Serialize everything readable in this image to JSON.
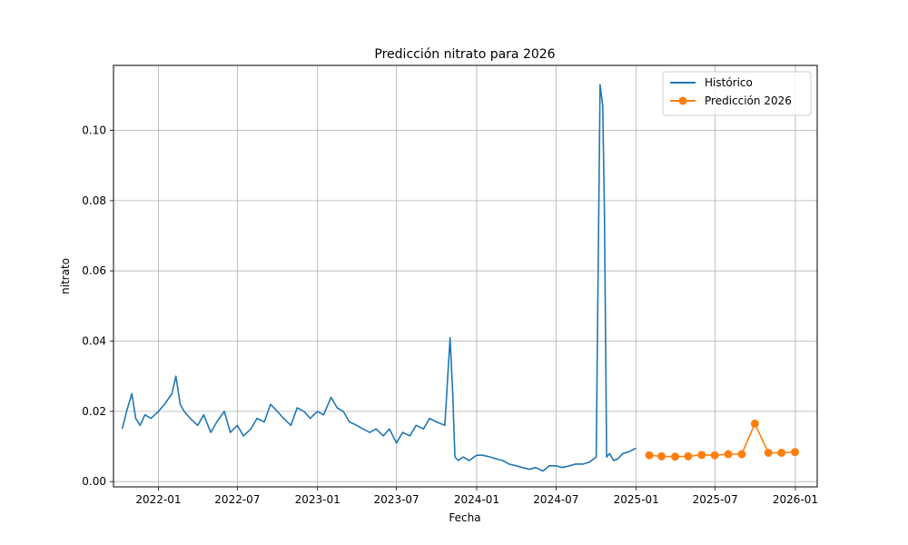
{
  "chart_data": {
    "type": "line",
    "title": "Predicción nitrato para 2026",
    "xlabel": "Fecha",
    "ylabel": "nitrato",
    "x_ticks": [
      "2022-01",
      "2022-07",
      "2023-01",
      "2023-07",
      "2024-01",
      "2024-07",
      "2025-01",
      "2025-07",
      "2026-01"
    ],
    "y_ticks": [
      "0.00",
      "0.02",
      "0.04",
      "0.06",
      "0.08",
      "0.10"
    ],
    "xlim": [
      "2021-09-20",
      "2026-02-20"
    ],
    "ylim": [
      -0.0015,
      0.1185
    ],
    "grid": true,
    "legend_position": "top-right",
    "colors": {
      "historico": "#1f77b4",
      "prediccion": "#ff7f0e"
    },
    "series": [
      {
        "name": "Histórico",
        "marker": "none",
        "x": [
          "2021-10-10",
          "2021-10-20",
          "2021-11-01",
          "2021-11-10",
          "2021-11-20",
          "2021-12-01",
          "2021-12-15",
          "2022-01-01",
          "2022-01-15",
          "2022-02-01",
          "2022-02-10",
          "2022-02-20",
          "2022-03-01",
          "2022-03-15",
          "2022-04-01",
          "2022-04-15",
          "2022-05-01",
          "2022-05-15",
          "2022-06-01",
          "2022-06-15",
          "2022-07-01",
          "2022-07-15",
          "2022-08-01",
          "2022-08-15",
          "2022-09-01",
          "2022-09-15",
          "2022-10-01",
          "2022-10-15",
          "2022-11-01",
          "2022-11-15",
          "2022-12-01",
          "2022-12-15",
          "2023-01-01",
          "2023-01-15",
          "2023-02-01",
          "2023-02-15",
          "2023-03-01",
          "2023-03-15",
          "2023-04-01",
          "2023-04-15",
          "2023-05-01",
          "2023-05-15",
          "2023-06-01",
          "2023-06-15",
          "2023-07-01",
          "2023-07-15",
          "2023-08-01",
          "2023-08-15",
          "2023-09-01",
          "2023-09-15",
          "2023-10-01",
          "2023-10-20",
          "2023-11-01",
          "2023-11-07",
          "2023-11-12",
          "2023-11-20",
          "2023-12-01",
          "2023-12-15",
          "2024-01-01",
          "2024-01-15",
          "2024-02-01",
          "2024-02-15",
          "2024-03-01",
          "2024-03-15",
          "2024-04-01",
          "2024-04-15",
          "2024-05-01",
          "2024-05-15",
          "2024-06-01",
          "2024-06-15",
          "2024-07-01",
          "2024-07-15",
          "2024-08-01",
          "2024-08-15",
          "2024-09-01",
          "2024-09-15",
          "2024-10-01",
          "2024-10-10",
          "2024-10-16",
          "2024-10-20",
          "2024-10-25",
          "2024-11-01",
          "2024-11-10",
          "2024-11-20",
          "2024-12-01",
          "2024-12-15",
          "2024-12-31"
        ],
        "values": [
          0.015,
          0.02,
          0.025,
          0.018,
          0.016,
          0.019,
          0.018,
          0.02,
          0.022,
          0.025,
          0.03,
          0.022,
          0.02,
          0.018,
          0.016,
          0.019,
          0.014,
          0.017,
          0.02,
          0.014,
          0.016,
          0.013,
          0.015,
          0.018,
          0.017,
          0.022,
          0.02,
          0.018,
          0.016,
          0.021,
          0.02,
          0.018,
          0.02,
          0.019,
          0.024,
          0.021,
          0.02,
          0.017,
          0.016,
          0.015,
          0.014,
          0.015,
          0.013,
          0.015,
          0.011,
          0.014,
          0.013,
          0.016,
          0.015,
          0.018,
          0.017,
          0.016,
          0.041,
          0.025,
          0.007,
          0.006,
          0.007,
          0.006,
          0.0075,
          0.0075,
          0.007,
          0.0065,
          0.006,
          0.005,
          0.0045,
          0.004,
          0.0035,
          0.004,
          0.003,
          0.0045,
          0.0045,
          0.004,
          0.0045,
          0.005,
          0.005,
          0.0055,
          0.007,
          0.113,
          0.107,
          0.076,
          0.007,
          0.008,
          0.006,
          0.0065,
          0.008,
          0.0085,
          0.0095
        ]
      },
      {
        "name": "Predicción 2026",
        "marker": "circle",
        "x": [
          "2025-01-31",
          "2025-02-28",
          "2025-03-31",
          "2025-04-30",
          "2025-05-31",
          "2025-06-30",
          "2025-07-31",
          "2025-08-31",
          "2025-09-30",
          "2025-10-31",
          "2025-11-30",
          "2025-12-31"
        ],
        "values": [
          0.0075,
          0.0072,
          0.0071,
          0.0072,
          0.0076,
          0.0075,
          0.0078,
          0.0078,
          0.0165,
          0.0082,
          0.0082,
          0.0084
        ]
      }
    ]
  }
}
